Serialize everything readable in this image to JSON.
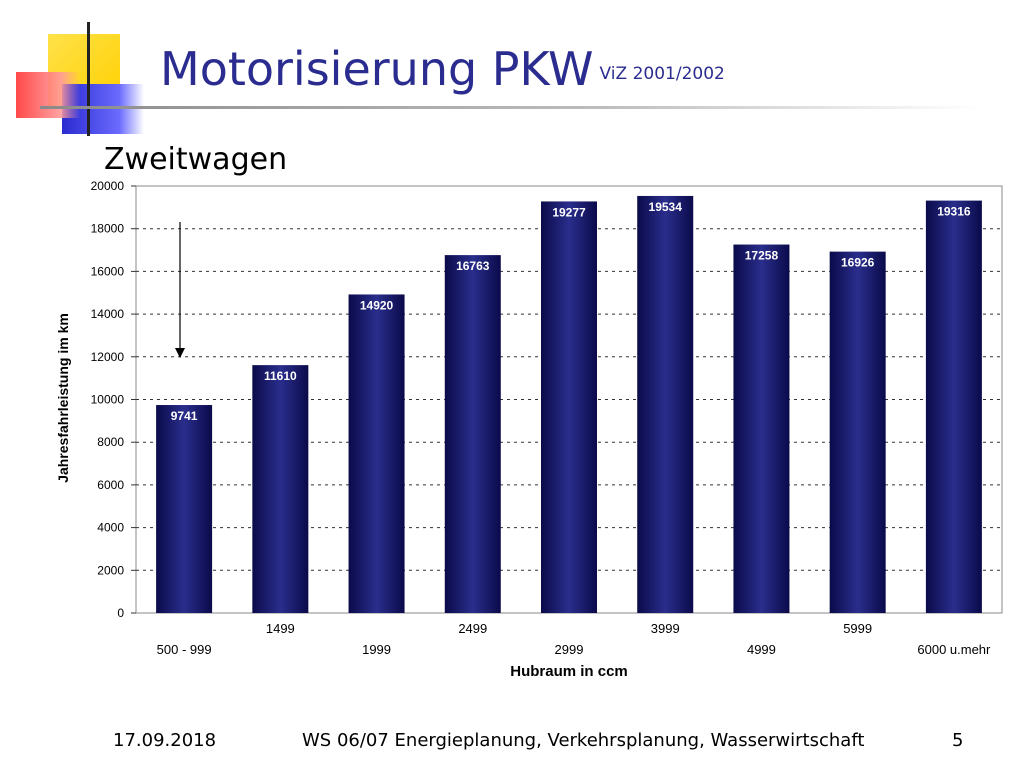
{
  "slide": {
    "title": "Motorisierung PKW",
    "title_suffix": "ViZ 2001/2002",
    "subheading": "Zweitwagen"
  },
  "footer": {
    "date": "17.09.2018",
    "center": "WS 06/07 Energieplanung, Verkehrsplanung, Wasserwirtschaft",
    "page": "5"
  },
  "colors": {
    "title": "#2b2c8f",
    "bar_dark": "#0a0a4a",
    "bar_light": "#2a2e8c",
    "deco_yellow": "#ffd21a",
    "deco_red": "#ff4a4a",
    "deco_blue": "#3a3ad8"
  },
  "chart_data": {
    "type": "bar",
    "categories": [
      "500 - 999",
      "1499",
      "1999",
      "2499",
      "2999",
      "3999",
      "4999",
      "5999",
      "6000 u.mehr"
    ],
    "category_rows": [
      2,
      1,
      2,
      1,
      2,
      1,
      2,
      1,
      2
    ],
    "values": [
      9741,
      11610,
      14920,
      16763,
      19277,
      19534,
      17258,
      16926,
      19316
    ],
    "xlabel": "Hubraum in ccm",
    "ylabel": "Jahresfahrleistung im km",
    "ylim": [
      0,
      20000
    ],
    "yticks": [
      0,
      2000,
      4000,
      6000,
      8000,
      10000,
      12000,
      14000,
      16000,
      18000,
      20000
    ],
    "grid": true,
    "annotation": "downward arrow pointing to first bar"
  }
}
